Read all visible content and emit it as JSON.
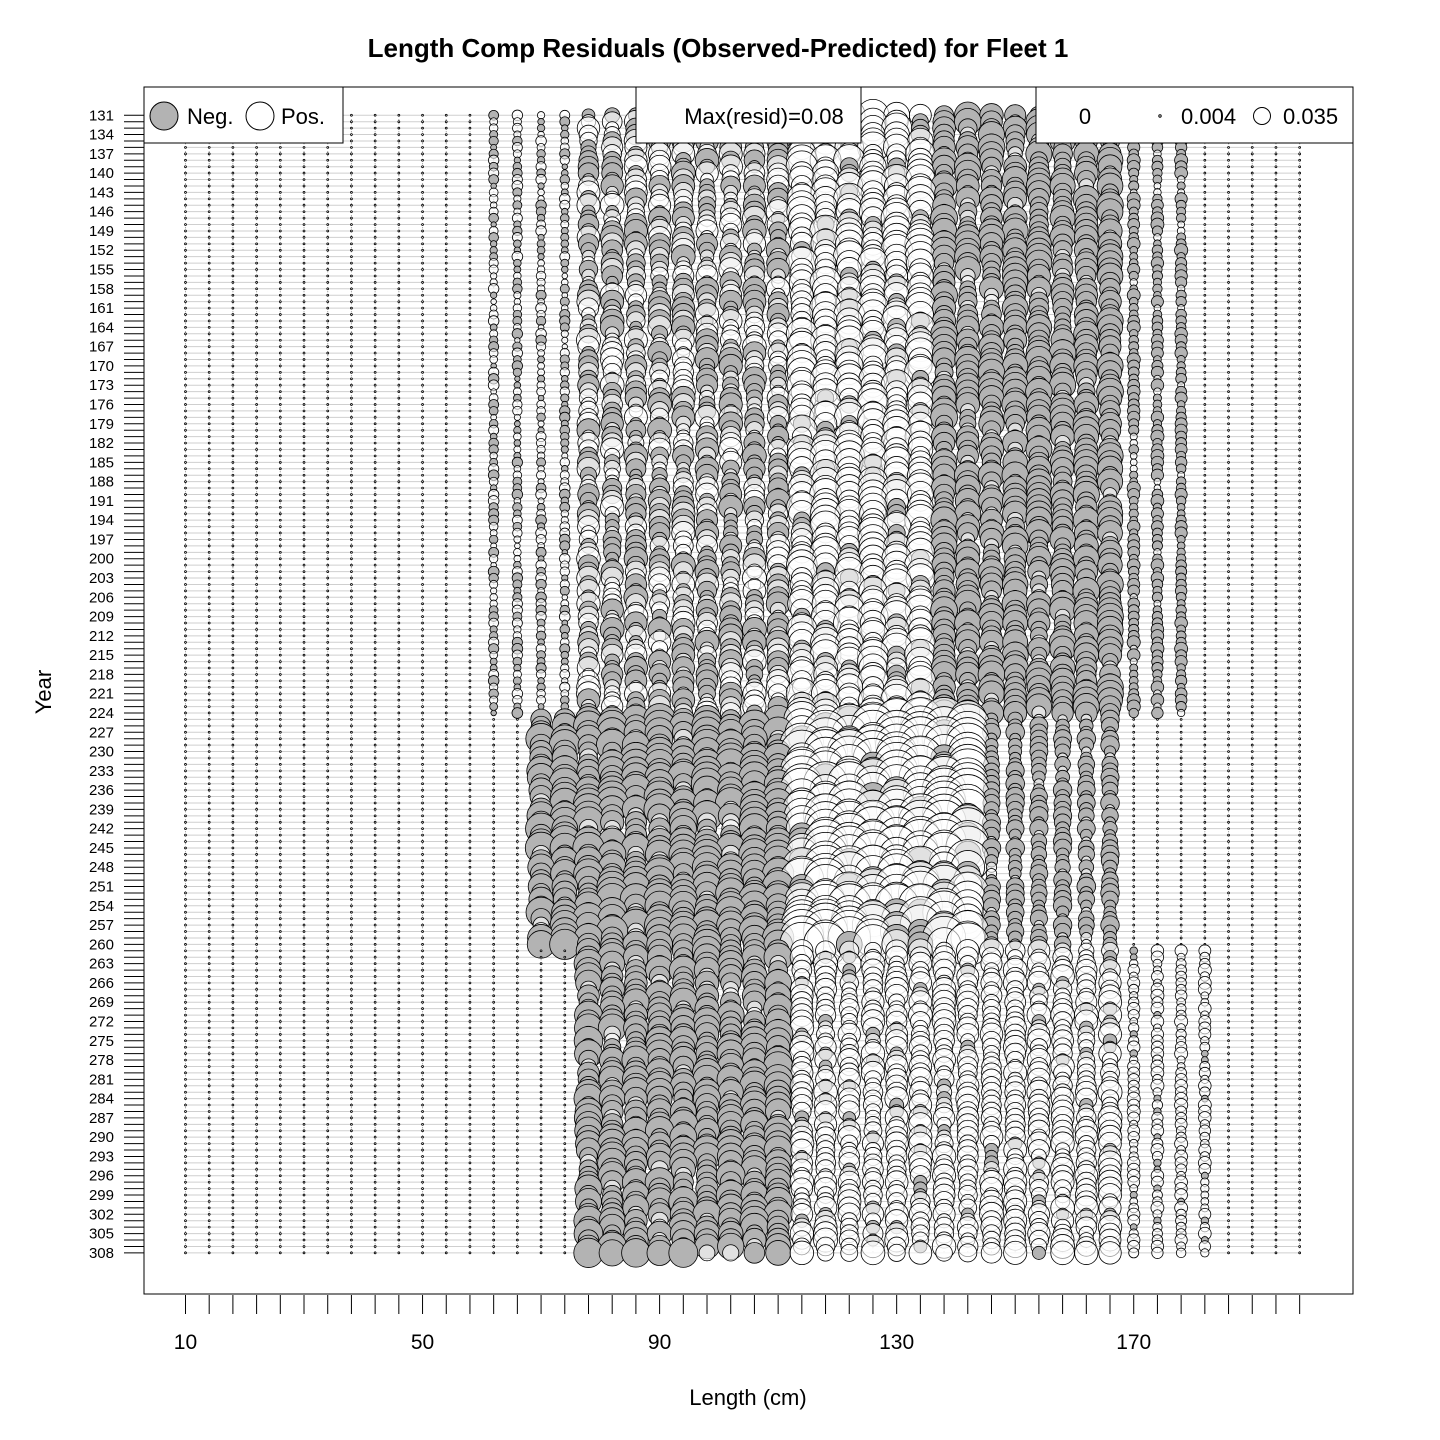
{
  "chart_data": {
    "type": "scatter",
    "subtype": "bubble",
    "title": "Length Comp Residuals (Observed-Predicted) for Fleet 1",
    "xlabel": "Length (cm)",
    "ylabel": "Year",
    "xlim": [
      3,
      207
    ],
    "ylim": [
      314.4,
      126.6
    ],
    "x_ticks": [
      10,
      50,
      90,
      130,
      170
    ],
    "x_tick_labels": [
      "10",
      "50",
      "90",
      "130",
      "170"
    ],
    "y_ticks": [
      131,
      134,
      137,
      140,
      143,
      146,
      149,
      152,
      155,
      158,
      161,
      164,
      167,
      170,
      173,
      176,
      179,
      182,
      185,
      188,
      191,
      194,
      197,
      200,
      203,
      206,
      209,
      212,
      215,
      218,
      221,
      224,
      227,
      230,
      233,
      236,
      239,
      242,
      245,
      248,
      251,
      254,
      257,
      260,
      263,
      266,
      269,
      272,
      275,
      278,
      281,
      284,
      287,
      290,
      293,
      296,
      299,
      302,
      305,
      308
    ],
    "y_tick_labels": [
      "131",
      "134",
      "137",
      "140",
      "143",
      "146",
      "149",
      "152",
      "155",
      "158",
      "161",
      "164",
      "167",
      "170",
      "173",
      "176",
      "179",
      "182",
      "185",
      "188",
      "191",
      "194",
      "197",
      "200",
      "203",
      "206",
      "209",
      "212",
      "215",
      "218",
      "221",
      "224",
      "227",
      "230",
      "233",
      "236",
      "239",
      "242",
      "245",
      "248",
      "251",
      "254",
      "257",
      "260",
      "263",
      "266",
      "269",
      "272",
      "275",
      "278",
      "281",
      "284",
      "287",
      "290",
      "293",
      "296",
      "299",
      "302",
      "305",
      "308"
    ],
    "year_range": [
      131,
      308
    ],
    "length_bins": {
      "start": 10,
      "end": 198,
      "step": 4
    },
    "legend": {
      "sign": [
        {
          "label": "Neg.",
          "fill": "#b3b3b3"
        },
        {
          "label": "Pos.",
          "fill": "#ffffff"
        }
      ],
      "max_label": "Max(resid)=0.08",
      "size_keys": [
        "0",
        "0.004",
        "0.035"
      ],
      "placement": "top"
    },
    "max_resid": 0.08,
    "grid": true,
    "regions": [
      {
        "years": [
          131,
          224
        ],
        "lengths": [
          62,
          74
        ],
        "sign": "mixed",
        "magnitude": 0.004
      },
      {
        "years": [
          131,
          224
        ],
        "lengths": [
          78,
          94
        ],
        "sign": "mixed",
        "magnitude": 0.02
      },
      {
        "years": [
          131,
          224
        ],
        "lengths": [
          98,
          110
        ],
        "sign": "mixed",
        "magnitude": 0.02
      },
      {
        "years": [
          131,
          224
        ],
        "lengths": [
          114,
          134
        ],
        "sign": "positive",
        "magnitude": 0.035
      },
      {
        "years": [
          131,
          224
        ],
        "lengths": [
          138,
          166
        ],
        "sign": "negative",
        "magnitude": 0.025
      },
      {
        "years": [
          131,
          224
        ],
        "lengths": [
          170,
          178
        ],
        "sign": "negative",
        "magnitude": 0.006
      },
      {
        "years": [
          225,
          260
        ],
        "lengths": [
          70,
          110
        ],
        "sign": "negative",
        "magnitude": 0.035
      },
      {
        "years": [
          225,
          260
        ],
        "lengths": [
          114,
          142
        ],
        "sign": "positive",
        "magnitude": 0.08
      },
      {
        "years": [
          225,
          260
        ],
        "lengths": [
          146,
          166
        ],
        "sign": "negative",
        "magnitude": 0.012
      },
      {
        "years": [
          261,
          308
        ],
        "lengths": [
          78,
          110
        ],
        "sign": "negative",
        "magnitude": 0.03
      },
      {
        "years": [
          261,
          308
        ],
        "lengths": [
          114,
          166
        ],
        "sign": "positive",
        "magnitude": 0.02
      },
      {
        "years": [
          261,
          308
        ],
        "lengths": [
          170,
          182
        ],
        "sign": "positive",
        "magnitude": 0.006
      }
    ]
  }
}
